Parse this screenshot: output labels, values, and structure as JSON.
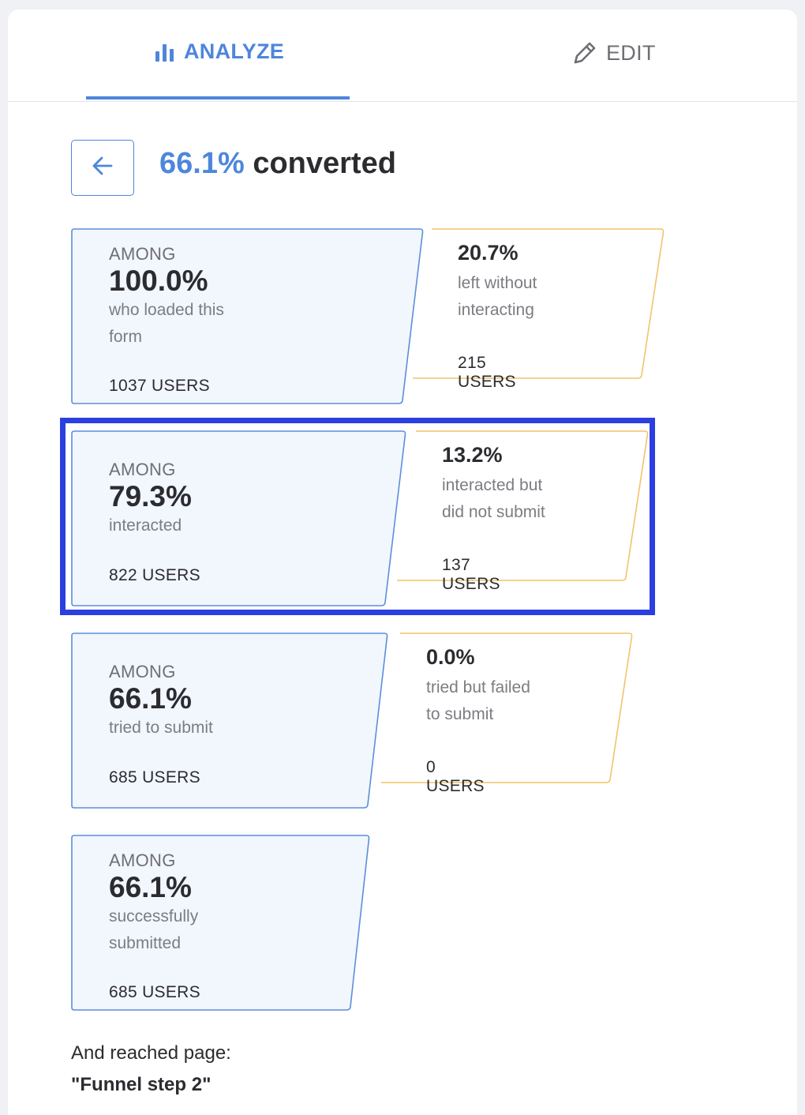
{
  "tabs": {
    "analyze": {
      "label": "ANALYZE",
      "icon": "bar-chart-icon",
      "color": "#4e86db"
    },
    "edit": {
      "label": "EDIT",
      "icon": "pencil-icon",
      "color": "#6d6f74"
    }
  },
  "header": {
    "back_icon": "arrow-left-icon",
    "conversion_pct": "66.1%",
    "conversion_label": "converted"
  },
  "steps": [
    {
      "among_label": "AMONG",
      "among_pct": "100.0%",
      "among_desc_1": "who loaded this",
      "among_desc_2": "form",
      "among_users": "1037 USERS",
      "drop_pct": "20.7%",
      "drop_desc_1": "left without",
      "drop_desc_2": "interacting",
      "drop_users": "215 USERS"
    },
    {
      "among_label": "AMONG",
      "among_pct": "79.3%",
      "among_desc_1": "interacted",
      "among_desc_2": "",
      "among_users": "822 USERS",
      "drop_pct": "13.2%",
      "drop_desc_1": "interacted but",
      "drop_desc_2": "did not submit",
      "drop_users": "137 USERS"
    },
    {
      "among_label": "AMONG",
      "among_pct": "66.1%",
      "among_desc_1": "tried to submit",
      "among_desc_2": "",
      "among_users": "685 USERS",
      "drop_pct": "0.0%",
      "drop_desc_1": "tried but failed",
      "drop_desc_2": "to submit",
      "drop_users": "0 USERS"
    },
    {
      "among_label": "AMONG",
      "among_pct": "66.1%",
      "among_desc_1": "successfully",
      "among_desc_2": "submitted",
      "among_users": "685 USERS"
    }
  ],
  "reached": {
    "label": "And reached page:",
    "page": "\"Funnel step 2\""
  },
  "colors": {
    "accent": "#4e86db",
    "among_fill": "#f2f6fd",
    "among_border": "#5b8fdc",
    "drop_border": "#f0c46a",
    "highlight": "#2b3fe0"
  }
}
